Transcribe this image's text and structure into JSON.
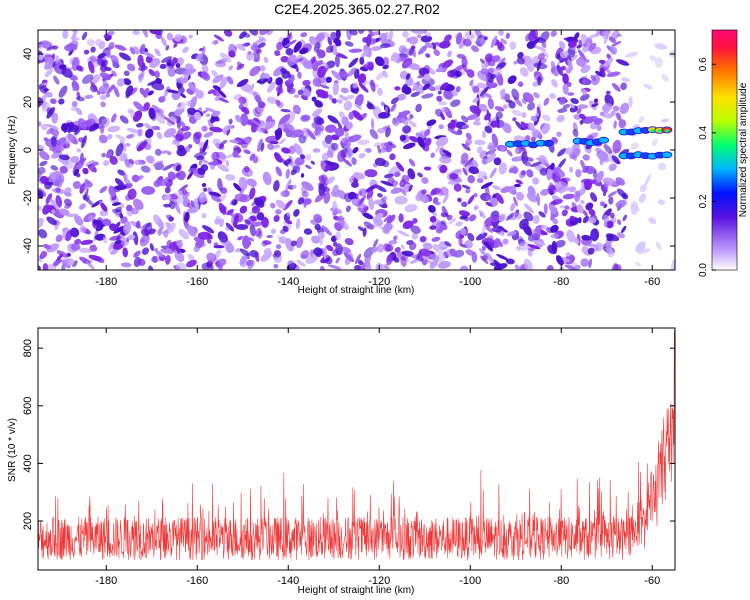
{
  "title": "C2E4.2025.365.02.27.R02",
  "colors": {
    "snr_line": "#f03a3a",
    "spec_low": "#c9a8ff",
    "spec_mid": "#7b22e6",
    "spec_high": "#4a0fd0"
  },
  "chart_data": [
    {
      "type": "heatmap",
      "name": "spectrogram",
      "xlabel": "Height of straight line (km)",
      "ylabel": "Frequency (Hz)",
      "xlim": [
        -195,
        -55
      ],
      "ylim": [
        -50,
        50
      ],
      "xticks": [
        -180,
        -160,
        -140,
        -120,
        -100,
        -80,
        -60
      ],
      "xtick_labels": [
        "-180",
        "-160",
        "-140",
        "-120",
        "-100",
        "-80",
        "-60"
      ],
      "yticks": [
        -40,
        -20,
        0,
        20,
        40
      ],
      "ytick_labels": [
        "-40",
        "-20",
        "0",
        "20",
        "40"
      ],
      "colorbar": {
        "label": "Normalized spectral amplitude",
        "range": [
          0,
          0.7
        ],
        "ticks": [
          0,
          0.2,
          0.4,
          0.6
        ],
        "tick_labels": [
          "0.0",
          "0.2",
          "0.4",
          "0.6"
        ]
      },
      "features": [
        {
          "x_range": [
            -92,
            -82
          ],
          "freq_hz": 2.5,
          "amplitude": 0.3
        },
        {
          "x_range": [
            -77,
            -70
          ],
          "freq_hz": 3.5,
          "amplitude": 0.3
        },
        {
          "x_range": [
            -67,
            -56
          ],
          "freq_hz": 8,
          "amplitude": 0.6
        },
        {
          "x_range": [
            -67,
            -56
          ],
          "freq_hz": -2,
          "amplitude": 0.35
        }
      ]
    },
    {
      "type": "line",
      "name": "snr",
      "xlabel": "Height of straight line (km)",
      "ylabel": "SNR (10 * v/v)",
      "xlim": [
        -195,
        -55
      ],
      "ylim": [
        30,
        870
      ],
      "xticks": [
        -180,
        -160,
        -140,
        -120,
        -100,
        -80,
        -60
      ],
      "xtick_labels": [
        "-180",
        "-160",
        "-140",
        "-120",
        "-100",
        "-80",
        "-60"
      ],
      "yticks": [
        200,
        400,
        600,
        800
      ],
      "ytick_labels": [
        "200",
        "400",
        "600",
        "800"
      ],
      "series": [
        {
          "name": "SNR",
          "baseline": 140,
          "noise_band": [
            40,
            350
          ],
          "rise_start_km": -66,
          "end_value": 860
        }
      ]
    }
  ]
}
